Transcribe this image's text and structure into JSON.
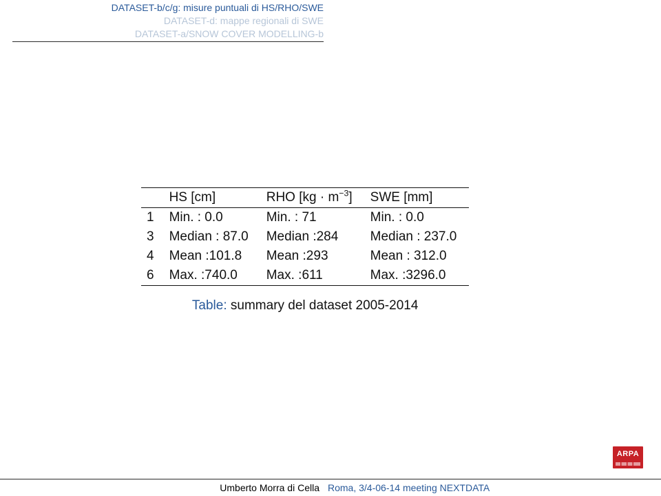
{
  "header": {
    "lines": [
      {
        "text": "DATASET-b/c/g: misure puntuali di HS/RHO/SWE",
        "active": true
      },
      {
        "text": "DATASET-d: mappe regionali di SWE",
        "active": false
      },
      {
        "text": "DATASET-a/SNOW COVER MODELLING-b",
        "active": false
      }
    ]
  },
  "table": {
    "type": "table",
    "columns": [
      {
        "label": ""
      },
      {
        "label_html": "HS [cm]"
      },
      {
        "label_html": "RHO [kg · m⁻³]"
      },
      {
        "label_html": "SWE [mm]"
      }
    ],
    "rows": [
      {
        "idx": "1",
        "hs": "Min. : 0.0",
        "rho": "Min. : 71",
        "swe": "Min. : 0.0"
      },
      {
        "idx": "3",
        "hs": "Median : 87.0",
        "rho": "Median :284",
        "swe": "Median : 237.0"
      },
      {
        "idx": "4",
        "hs": "Mean :101.8",
        "rho": "Mean :293",
        "swe": "Mean : 312.0"
      },
      {
        "idx": "6",
        "hs": "Max. :740.0",
        "rho": "Max. :611",
        "swe": "Max. :3296.0"
      }
    ],
    "caption_label": "Table:",
    "caption_text": "summary del dataset 2005-2014"
  },
  "logo": {
    "text": "ARPA"
  },
  "footer": {
    "author": "Umberto Morra di Cella",
    "event": "Roma, 3/4-06-14 meeting NEXTDATA"
  },
  "colors": {
    "accent": "#2a5a9a",
    "muted": "#b7c6d8",
    "logo_bg": "#c62127"
  }
}
